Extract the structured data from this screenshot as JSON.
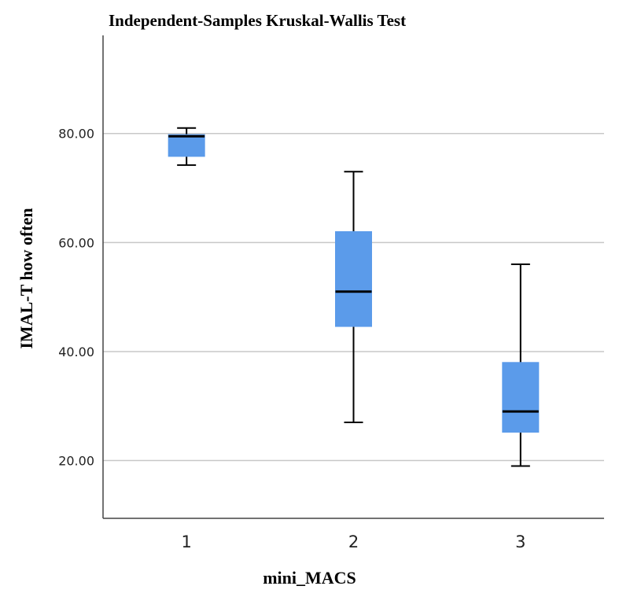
{
  "chart_data": {
    "type": "box",
    "title": "Independent-Samples Kruskal-Wallis Test",
    "xlabel": "mini_MACS",
    "ylabel": "IMAL-T how often",
    "categories": [
      "1",
      "2",
      "3"
    ],
    "boxes": [
      {
        "category": "1",
        "min": 74.2,
        "q1": 75.8,
        "median": 79.5,
        "q3": 79.8,
        "max": 81.0
      },
      {
        "category": "2",
        "min": 27.0,
        "q1": 44.6,
        "median": 51.0,
        "q3": 62.0,
        "max": 73.0
      },
      {
        "category": "3",
        "min": 19.0,
        "q1": 25.2,
        "median": 29.0,
        "q3": 38.0,
        "max": 56.0
      }
    ],
    "yticks": [
      {
        "value": 20,
        "label": "20.00"
      },
      {
        "value": 40,
        "label": "40.00"
      },
      {
        "value": 60,
        "label": "60.00"
      },
      {
        "value": 80,
        "label": "80.00"
      }
    ],
    "ylim": [
      9.4,
      98
    ],
    "grid": true,
    "box_color": "#5b9bea",
    "median_color": "#000000"
  }
}
